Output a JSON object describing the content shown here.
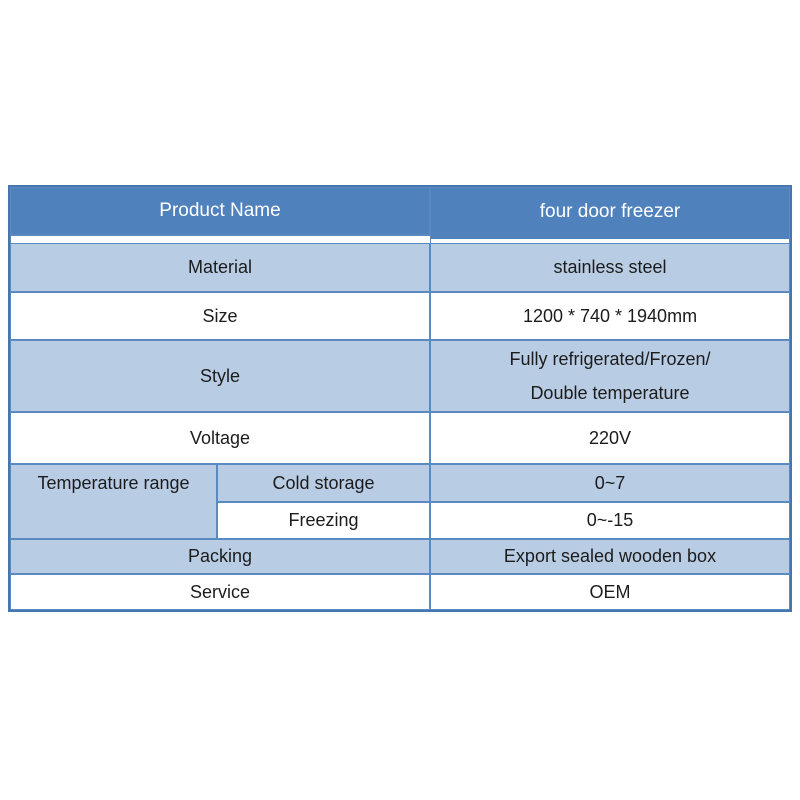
{
  "colors": {
    "header_bg": "#4f81bd",
    "alt_row_bg": "#b8cce4",
    "row_bg": "#ffffff",
    "border": "#5b8ac0",
    "header_text": "#ffffff",
    "body_text": "#1c1c1c"
  },
  "table": {
    "header": {
      "label": "Product Name",
      "value": "four door freezer"
    },
    "rows": [
      {
        "label": "Material",
        "value": "stainless steel"
      },
      {
        "label": "Size",
        "value": "1200 * 740 * 1940mm"
      },
      {
        "label": "Style",
        "value": "Fully refrigerated/Frozen/\nDouble temperature"
      },
      {
        "label": "Voltage",
        "value": "220V"
      }
    ],
    "temperature_group": {
      "label": "Temperature range",
      "sub_rows": [
        {
          "label": "Cold storage",
          "value": "0~7"
        },
        {
          "label": "Freezing",
          "value": "0~-15"
        }
      ]
    },
    "footer_rows": [
      {
        "label": "Packing",
        "value": "Export sealed wooden box"
      },
      {
        "label": "Service",
        "value": "OEM"
      }
    ]
  }
}
